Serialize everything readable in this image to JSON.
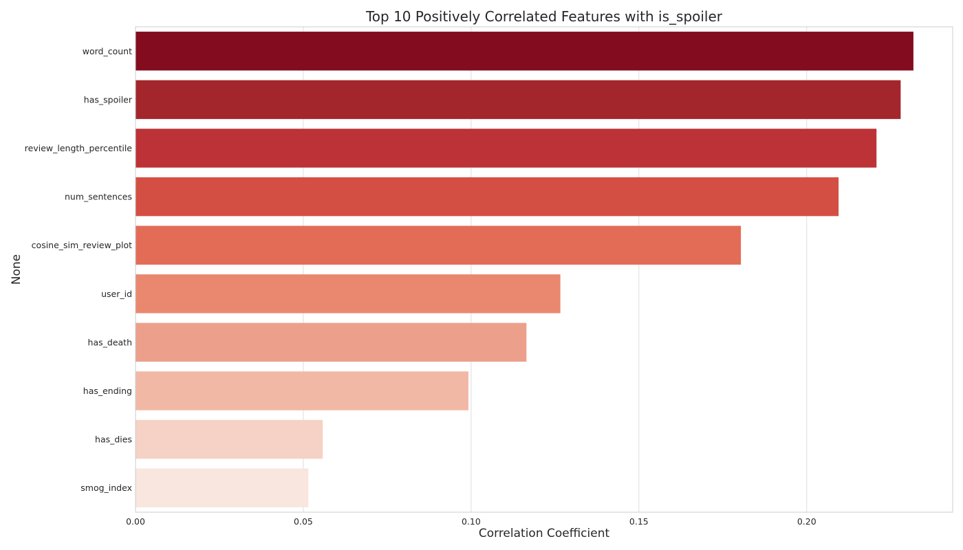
{
  "chart_data": {
    "type": "bar",
    "orientation": "horizontal",
    "title": "Top 10 Positively Correlated Features with is_spoiler",
    "xlabel": "Correlation Coefficient",
    "ylabel": "None",
    "xlim": [
      0,
      0.2435
    ],
    "xticks": [
      0.0,
      0.05,
      0.1,
      0.15,
      0.2
    ],
    "xtick_labels": [
      "0.00",
      "0.05",
      "0.10",
      "0.15",
      "0.20"
    ],
    "grid": true,
    "categories": [
      "word_count",
      "has_spoiler",
      "review_length_percentile",
      "num_sentences",
      "cosine_sim_review_plot",
      "user_id",
      "has_death",
      "has_ending",
      "has_dies",
      "smog_index"
    ],
    "values": [
      0.2318,
      0.228,
      0.2208,
      0.2095,
      0.1804,
      0.1266,
      0.1165,
      0.0992,
      0.0558,
      0.0515
    ],
    "colors": [
      "#840c1f",
      "#a3262d",
      "#bc3236",
      "#d44f43",
      "#e36c57",
      "#e9886e",
      "#eca08b",
      "#f1b9a5",
      "#f5d2c5",
      "#f9e6de"
    ]
  }
}
